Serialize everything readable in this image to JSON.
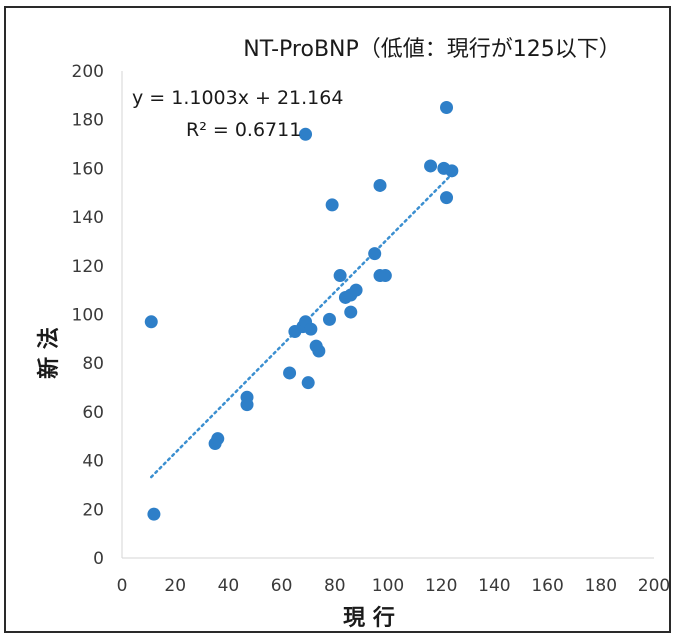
{
  "chart_data": {
    "type": "scatter",
    "title": "NT-ProBNP（低値：現行が125以下）",
    "xlabel": "現 行",
    "ylabel": "新 法",
    "xlim": [
      0,
      200
    ],
    "ylim": [
      0,
      200
    ],
    "xticks": [
      "0",
      "20",
      "40",
      "60",
      "80",
      "100",
      "120",
      "140",
      "160",
      "180",
      "200"
    ],
    "yticks": [
      "0",
      "20",
      "40",
      "60",
      "80",
      "100",
      "120",
      "140",
      "160",
      "180",
      "200"
    ],
    "grid": false,
    "trendline": {
      "style": "dotted",
      "slope": 1.1003,
      "intercept": 21.164,
      "x_range": [
        11,
        123
      ],
      "equation": "y = 1.1003x + 21.164",
      "r2": "R² = 0.6711"
    },
    "point_color": "#2e7fc8",
    "series": [
      {
        "points": [
          [
            11,
            97
          ],
          [
            12,
            18
          ],
          [
            35,
            47
          ],
          [
            36,
            49
          ],
          [
            47,
            66
          ],
          [
            47,
            63
          ],
          [
            63,
            76
          ],
          [
            65,
            93
          ],
          [
            68,
            95
          ],
          [
            69,
            97
          ],
          [
            70,
            72
          ],
          [
            71,
            94
          ],
          [
            73,
            87
          ],
          [
            74,
            85
          ],
          [
            69,
            174
          ],
          [
            78,
            98
          ],
          [
            79,
            145
          ],
          [
            82,
            116
          ],
          [
            84,
            107
          ],
          [
            86,
            101
          ],
          [
            86,
            108
          ],
          [
            88,
            110
          ],
          [
            95,
            125
          ],
          [
            97,
            153
          ],
          [
            97,
            116
          ],
          [
            99,
            116
          ],
          [
            116,
            161
          ],
          [
            121,
            160
          ],
          [
            122,
            185
          ],
          [
            122,
            148
          ],
          [
            124,
            159
          ]
        ]
      }
    ]
  }
}
